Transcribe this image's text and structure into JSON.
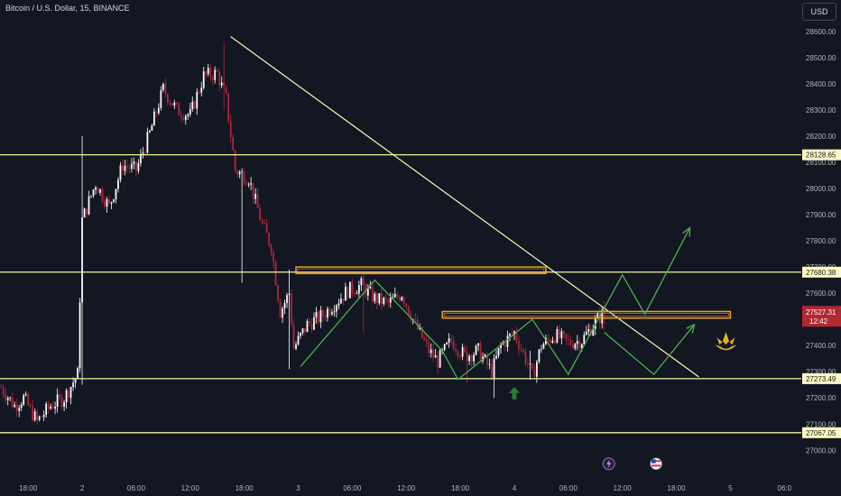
{
  "header": {
    "symbol_title": "Bitcoin / U.S. Dollar, 15, BINANCE",
    "currency": "USD"
  },
  "colors": {
    "background": "#131722",
    "bull": "#ffffff",
    "bear": "#b2263a",
    "level_line": "#f5f2a6",
    "trend_line": "#fbf7b0",
    "zone": "#f0a01c",
    "path_arrow": "#4caf50",
    "current_price_bg": "#b22833",
    "grid_label": "#b2b5be",
    "up_arrow": "#2a7a30",
    "event_icon": "#e2b02a"
  },
  "chart_data": {
    "type": "candlestick",
    "yaxis_ticks": [
      27000,
      27100,
      27200,
      27300,
      27400,
      27500,
      27600,
      27700,
      27800,
      27900,
      28000,
      28100,
      28200,
      28300,
      28400,
      28500,
      28600
    ],
    "yaxis_tick_labels": [
      "27000.00",
      "27100.00",
      "27200.00",
      "27300.00",
      "27400.00",
      "27500.00",
      "27600.00",
      "27700.00",
      "27800.00",
      "27900.00",
      "28000.00",
      "28100.00",
      "28200.00",
      "28300.00",
      "28400.00",
      "28500.00",
      "28600.00"
    ],
    "ylim": [
      26970,
      28720
    ],
    "xaxis_ticks": [
      {
        "label": "18:00",
        "bar": 12
      },
      {
        "label": "2",
        "bar": 36
      },
      {
        "label": "06:00",
        "bar": 60
      },
      {
        "label": "12:00",
        "bar": 84
      },
      {
        "label": "18:00",
        "bar": 108
      },
      {
        "label": "3",
        "bar": 132
      },
      {
        "label": "06:00",
        "bar": 156
      },
      {
        "label": "12:00",
        "bar": 180
      },
      {
        "label": "18:00",
        "bar": 204
      },
      {
        "label": "4",
        "bar": 228
      },
      {
        "label": "06:00",
        "bar": 252
      },
      {
        "label": "12:00",
        "bar": 276
      },
      {
        "label": "18:00",
        "bar": 300
      },
      {
        "label": "5",
        "bar": 324
      },
      {
        "label": "06:0",
        "bar": 348
      }
    ],
    "price_levels": [
      {
        "value": 28128.65,
        "label": "28128.65"
      },
      {
        "value": 27680.38,
        "label": "27680.38"
      },
      {
        "value": 27273.49,
        "label": "27273.49"
      },
      {
        "value": 27067.05,
        "label": "27067.05"
      }
    ],
    "current_price": {
      "value": 27527.31,
      "label": "27527.31",
      "countdown": "12:42"
    },
    "keypoints": [
      {
        "bar": 0,
        "price": 27240
      },
      {
        "bar": 6,
        "price": 27170
      },
      {
        "bar": 10,
        "price": 27200
      },
      {
        "bar": 16,
        "price": 27110
      },
      {
        "bar": 22,
        "price": 27170
      },
      {
        "bar": 28,
        "price": 27200
      },
      {
        "bar": 34,
        "price": 27290
      },
      {
        "bar": 36,
        "price": 27880
      },
      {
        "bar": 42,
        "price": 28020
      },
      {
        "bar": 48,
        "price": 27930
      },
      {
        "bar": 54,
        "price": 28090
      },
      {
        "bar": 60,
        "price": 28070
      },
      {
        "bar": 66,
        "price": 28210
      },
      {
        "bar": 72,
        "price": 28380
      },
      {
        "bar": 78,
        "price": 28300
      },
      {
        "bar": 84,
        "price": 28280
      },
      {
        "bar": 90,
        "price": 28430
      },
      {
        "bar": 96,
        "price": 28440
      },
      {
        "bar": 100,
        "price": 28340
      },
      {
        "bar": 104,
        "price": 28070
      },
      {
        "bar": 110,
        "price": 28040
      },
      {
        "bar": 116,
        "price": 27860
      },
      {
        "bar": 120,
        "price": 27780
      },
      {
        "bar": 124,
        "price": 27530
      },
      {
        "bar": 128,
        "price": 27600
      },
      {
        "bar": 130,
        "price": 27390
      },
      {
        "bar": 136,
        "price": 27480
      },
      {
        "bar": 142,
        "price": 27510
      },
      {
        "bar": 148,
        "price": 27560
      },
      {
        "bar": 154,
        "price": 27610
      },
      {
        "bar": 160,
        "price": 27630
      },
      {
        "bar": 166,
        "price": 27580
      },
      {
        "bar": 172,
        "price": 27560
      },
      {
        "bar": 178,
        "price": 27600
      },
      {
        "bar": 184,
        "price": 27480
      },
      {
        "bar": 190,
        "price": 27380
      },
      {
        "bar": 194,
        "price": 27340
      },
      {
        "bar": 200,
        "price": 27420
      },
      {
        "bar": 206,
        "price": 27360
      },
      {
        "bar": 212,
        "price": 27380
      },
      {
        "bar": 218,
        "price": 27300
      },
      {
        "bar": 222,
        "price": 27400
      },
      {
        "bar": 228,
        "price": 27450
      },
      {
        "bar": 234,
        "price": 27330
      },
      {
        "bar": 236,
        "price": 27280
      },
      {
        "bar": 240,
        "price": 27400
      },
      {
        "bar": 246,
        "price": 27440
      },
      {
        "bar": 252,
        "price": 27410
      },
      {
        "bar": 258,
        "price": 27420
      },
      {
        "bar": 264,
        "price": 27490
      },
      {
        "bar": 268,
        "price": 27527
      }
    ],
    "spikes": [
      {
        "bar": 36,
        "high": 28200,
        "low": 27250
      },
      {
        "bar": 99,
        "high": 28560,
        "low": 28300
      },
      {
        "bar": 107,
        "high": 28020,
        "low": 27640
      },
      {
        "bar": 128,
        "high": 27690,
        "low": 27310
      },
      {
        "bar": 161,
        "high": 27680,
        "low": 27450
      },
      {
        "bar": 207,
        "high": 27400,
        "low": 27260
      },
      {
        "bar": 219,
        "high": 27320,
        "low": 27200
      },
      {
        "bar": 235,
        "high": 27380,
        "low": 27270
      },
      {
        "bar": 268,
        "high": 27570,
        "low": 27460
      }
    ],
    "trend_line": {
      "from": {
        "bar": 102,
        "price": 28580
      },
      "to": {
        "bar": 310,
        "price": 27280
      }
    },
    "zones": [
      {
        "from_bar": 131,
        "to_bar": 242,
        "top": 27700,
        "bottom": 27675
      },
      {
        "from_bar": 196,
        "to_bar": 324,
        "top": 27530,
        "bottom": 27505
      }
    ],
    "drawn_paths": [
      {
        "name": "bullish-projection",
        "points": [
          {
            "bar": 133,
            "price": 27320
          },
          {
            "bar": 166,
            "price": 27650
          },
          {
            "bar": 196,
            "price": 27380
          },
          {
            "bar": 203,
            "price": 27270
          },
          {
            "bar": 236,
            "price": 27500
          },
          {
            "bar": 252,
            "price": 27290
          },
          {
            "bar": 276,
            "price": 27670
          },
          {
            "bar": 286,
            "price": 27520
          },
          {
            "bar": 306,
            "price": 27850
          }
        ],
        "arrow": true
      },
      {
        "name": "alternate-projection",
        "points": [
          {
            "bar": 268,
            "price": 27450
          },
          {
            "bar": 290,
            "price": 27290
          },
          {
            "bar": 308,
            "price": 27480
          }
        ],
        "arrow": true
      }
    ],
    "markers": [
      {
        "name": "up-arrow",
        "bar": 228,
        "price": 27215
      },
      {
        "name": "event-lightning",
        "bar": 270,
        "price": 27000
      },
      {
        "name": "event-us-flag",
        "bar": 291,
        "price": 27000
      },
      {
        "name": "brand-logo",
        "bar": 322,
        "price": 27410
      }
    ]
  }
}
